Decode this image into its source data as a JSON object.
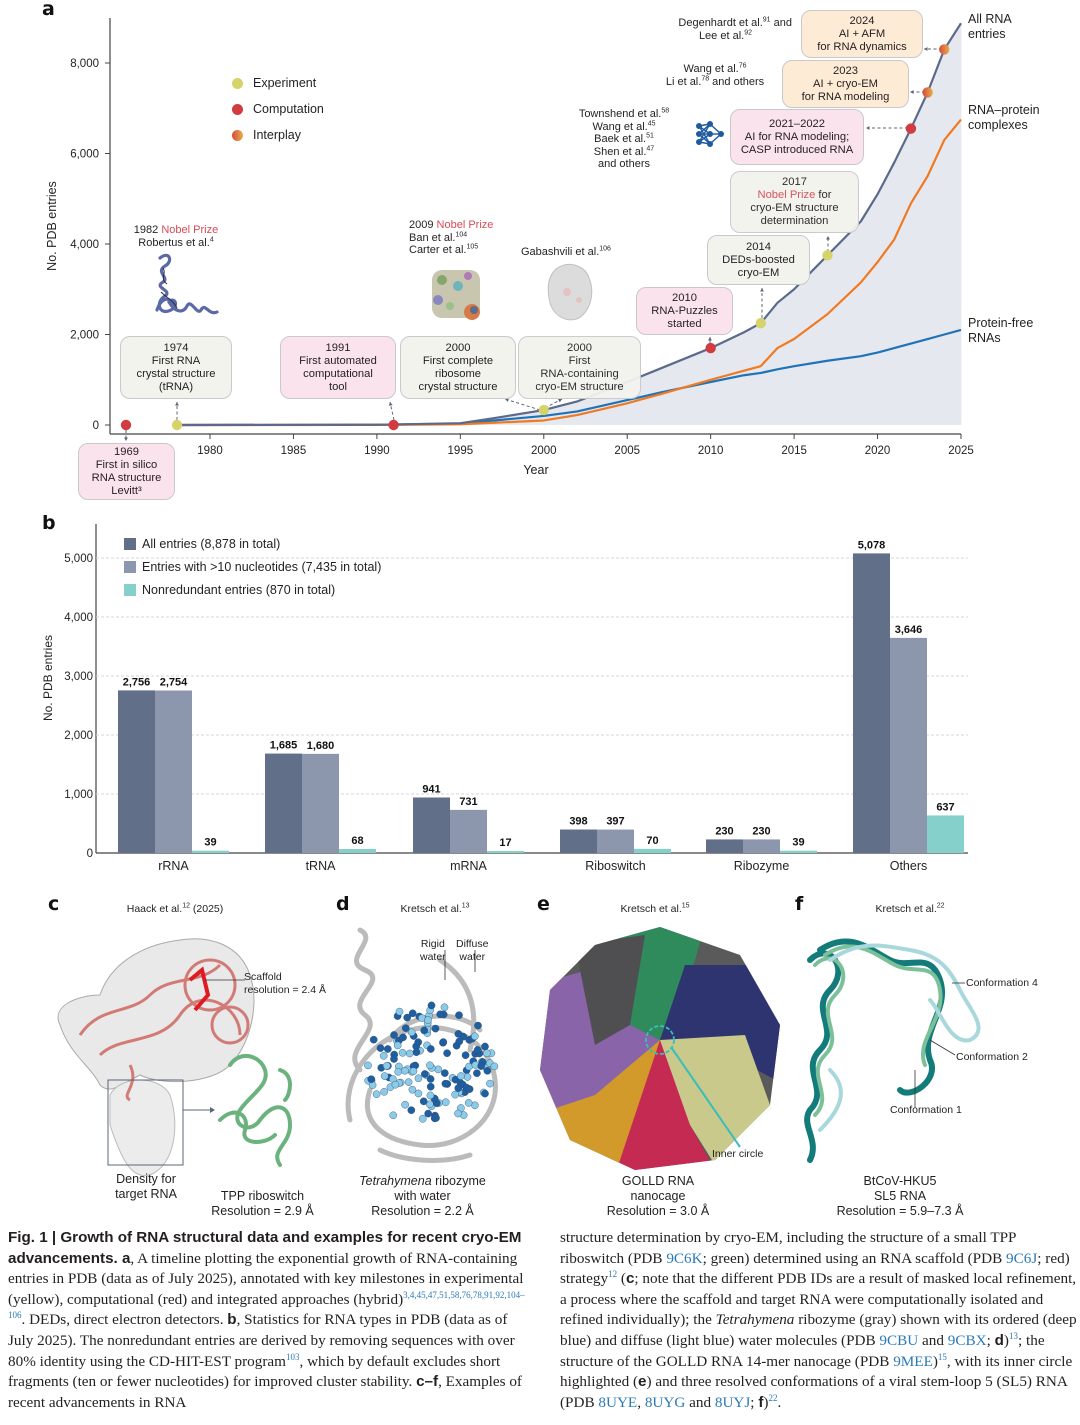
{
  "panels": {
    "a": {
      "letter": "a"
    },
    "b": {
      "letter": "b"
    },
    "c": {
      "letter": "c",
      "citation": "Haack et al.",
      "citation_ref": "12",
      "citation_suffix": " (2025)",
      "scaffold_label_1": "Scaffold",
      "scaffold_label_2": "resolution = 2.4 Å",
      "density_label_1": "Density for",
      "density_label_2": "target RNA",
      "caption_1": "TPP riboswitch",
      "caption_2": "Resolution = 2.9 Å"
    },
    "d": {
      "letter": "d",
      "citation": "Kretsch et al.",
      "citation_ref": "13",
      "rigid_1": "Rigid",
      "rigid_2": "water",
      "diffuse_1": "Diffuse",
      "diffuse_2": "water",
      "caption_italic": "Tetrahymena",
      "caption_1_rest": " ribozyme",
      "caption_2": "with water",
      "caption_3": "Resolution = 2.2 Å"
    },
    "e": {
      "letter": "e",
      "citation": "Kretsch et al.",
      "citation_ref": "15",
      "inner_circle": "Inner circle",
      "caption_1": "GOLLD RNA",
      "caption_2": "nanocage",
      "caption_3": "Resolution = 3.0 Å"
    },
    "f": {
      "letter": "f",
      "citation": "Kretsch et al.",
      "citation_ref": "22",
      "conf4": "Conformation 4",
      "conf2": "Conformation 2",
      "conf1": "Conformation 1",
      "caption_1": "BtCoV-HKU5",
      "caption_2": "SL5 RNA",
      "caption_3": "Resolution = 5.9–7.3 Å"
    }
  },
  "chart_data": [
    {
      "type": "area",
      "title": "",
      "xlabel": "Year",
      "ylabel": "No. PDB entries",
      "xlim": [
        1969,
        2025
      ],
      "ylim": [
        0,
        8878
      ],
      "x_ticks": [
        1980,
        1985,
        1990,
        1995,
        2000,
        2005,
        2010,
        2015,
        2020,
        2025
      ],
      "y_ticks": [
        0,
        2000,
        4000,
        6000,
        8000
      ],
      "y_tick_labels": [
        "0",
        "2,000",
        "4,000",
        "6,000",
        "8,000"
      ],
      "grid": false,
      "series": [
        {
          "name": "All RNA entries",
          "label_lines": [
            "All RNA",
            "entries"
          ],
          "color": "#5b6a8a",
          "fill": "#e6e8ef",
          "x": [
            1978,
            1990,
            1995,
            1997,
            2000,
            2002,
            2005,
            2007,
            2010,
            2012,
            2013,
            2014,
            2015,
            2017,
            2019,
            2020,
            2021,
            2022,
            2023,
            2024,
            2025
          ],
          "y": [
            0,
            5,
            40,
            150,
            330,
            520,
            950,
            1250,
            1700,
            2050,
            2250,
            2700,
            3000,
            3750,
            4500,
            5100,
            5800,
            6550,
            7350,
            8300,
            8878
          ]
        },
        {
          "name": "RNA–protein complexes",
          "label_lines": [
            "RNA–protein",
            "complexes"
          ],
          "color": "#f07a22",
          "x": [
            1978,
            1990,
            1995,
            1997,
            2000,
            2002,
            2005,
            2007,
            2010,
            2012,
            2013,
            2014,
            2015,
            2017,
            2019,
            2020,
            2021,
            2022,
            2023,
            2024,
            2025
          ],
          "y": [
            0,
            2,
            15,
            50,
            100,
            220,
            480,
            680,
            1000,
            1200,
            1300,
            1700,
            1900,
            2450,
            3150,
            3600,
            4100,
            4900,
            5500,
            6300,
            6750
          ]
        },
        {
          "name": "Protein-free RNAs",
          "label_lines": [
            "Protein-free",
            "RNAs"
          ],
          "color": "#1f73b7",
          "x": [
            1978,
            1990,
            1995,
            1997,
            2000,
            2002,
            2005,
            2007,
            2010,
            2012,
            2013,
            2014,
            2015,
            2017,
            2019,
            2020,
            2021,
            2022,
            2023,
            2024,
            2025
          ],
          "y": [
            0,
            5,
            30,
            100,
            200,
            300,
            550,
            720,
            950,
            1100,
            1150,
            1230,
            1300,
            1420,
            1520,
            1600,
            1700,
            1800,
            1900,
            2000,
            2100
          ]
        }
      ],
      "legend": {
        "placement": "top-left",
        "items": [
          {
            "label": "Experiment",
            "color": "#d5d36a"
          },
          {
            "label": "Computation",
            "color": "#d03c40"
          },
          {
            "label": "Interplay",
            "color_from": "#d7483f",
            "color_to": "#e6b04a"
          }
        ]
      },
      "milestones": [
        {
          "year": 1969,
          "value": 0,
          "kind": "Computation",
          "lines": [
            "1969",
            "First in silico",
            "RNA structure",
            "Levitt³"
          ]
        },
        {
          "year": 1974,
          "value": 0,
          "kind": "Experiment",
          "lines": [
            "1974",
            "First RNA",
            "crystal structure",
            "(tRNA)"
          ]
        },
        {
          "year": 1991,
          "value": 0,
          "kind": "Computation",
          "lines": [
            "1991",
            "First automated",
            "computational",
            "tool"
          ]
        },
        {
          "year": 2000,
          "value": 330,
          "kind": "Experiment",
          "lines": [
            "2000",
            "First complete",
            "ribosome",
            "crystal structure"
          ]
        },
        {
          "year": 2000,
          "value": 330,
          "kind": "Experiment",
          "lines": [
            "2000",
            "First",
            "RNA-containing",
            "cryo-EM structure"
          ]
        },
        {
          "year": 2010,
          "value": 1700,
          "kind": "Computation",
          "lines": [
            "2010",
            "RNA-Puzzles",
            "started"
          ]
        },
        {
          "year": 2013,
          "value": 2250,
          "kind": "Experiment",
          "lines": [
            "2014",
            "DEDs-boosted",
            "cryo-EM"
          ]
        },
        {
          "year": 2017,
          "value": 3750,
          "kind": "Experiment",
          "lines": [
            "2017",
            "Nobel Prize for",
            "cryo-EM structure",
            "determination"
          ]
        },
        {
          "year": 2022,
          "value": 6550,
          "kind": "Computation",
          "lines": [
            "2021–2022",
            "AI for RNA modeling;",
            "CASP introduced RNA"
          ]
        },
        {
          "year": 2023,
          "value": 7350,
          "kind": "Interplay",
          "lines": [
            "2023",
            "AI + cryo-EM",
            "for RNA modeling"
          ]
        },
        {
          "year": 2024,
          "value": 8300,
          "kind": "Interplay",
          "lines": [
            "2024",
            "AI + AFM",
            "for RNA dynamics"
          ]
        }
      ],
      "annotations": {
        "nobel_1982": {
          "year_text": "1982 ",
          "nobel_text": "Nobel Prize",
          "author": "Robertus et al.",
          "ref": "4"
        },
        "nobel_2009": {
          "year_text": "2009 ",
          "nobel_text": "Nobel Prize",
          "authors": [
            {
              "name": "Ban et al.",
              "ref": "104"
            },
            {
              "name": "Carter et al.",
              "ref": "105"
            }
          ]
        },
        "gabashvili": {
          "name": "Gabashvili et al.",
          "ref": "106"
        },
        "townshend": [
          {
            "name": "Townshend et al.",
            "ref": "58"
          },
          {
            "name": "Wang et al.",
            "ref": "45"
          },
          {
            "name": "Baek et al.",
            "ref": "51"
          },
          {
            "name": "Shen et al.",
            "ref": "47"
          },
          {
            "name": "and others",
            "ref": ""
          }
        ],
        "wang_li": [
          {
            "name": "Wang et al.",
            "ref": "76"
          },
          {
            "name": "Li et al.",
            "ref": "78",
            "suffix": " and others"
          }
        ],
        "degenhardt": [
          {
            "name": "Degenhardt et al.",
            "ref": "91",
            "suffix": " and"
          },
          {
            "name": "Lee et al.",
            "ref": "92"
          }
        ],
        "nobel_2017_prefix": "2017",
        "nobel_2017_red": "Nobel Prize",
        "nobel_2017_suffix": " for"
      }
    },
    {
      "type": "bar",
      "title": "",
      "xlabel": "",
      "ylabel": "No. PDB entries",
      "ylim": [
        0,
        5500
      ],
      "y_ticks": [
        0,
        1000,
        2000,
        3000,
        4000,
        5000
      ],
      "y_tick_labels": [
        "0",
        "1,000",
        "2,000",
        "3,000",
        "4,000",
        "5,000"
      ],
      "grid": true,
      "categories": [
        "rRNA",
        "tRNA",
        "mRNA",
        "Riboswitch",
        "Ribozyme",
        "Others"
      ],
      "series": [
        {
          "name": "All entries (8,878 in total)",
          "color": "#616f89",
          "values": [
            2756,
            1685,
            941,
            398,
            230,
            5078
          ],
          "labels": [
            "2,756",
            "1,685",
            "941",
            "398",
            "230",
            "5,078"
          ]
        },
        {
          "name": "Entries with >10 nucleotides (7,435 in total)",
          "color": "#8c96ad",
          "values": [
            2754,
            1680,
            731,
            397,
            230,
            3646
          ],
          "labels": [
            "2,754",
            "1,680",
            "731",
            "397",
            "230",
            "3,646"
          ]
        },
        {
          "name": "Nonredundant entries (870 in total)",
          "color": "#86d0cc",
          "values": [
            39,
            68,
            17,
            70,
            39,
            637
          ],
          "labels": [
            "39",
            "68",
            "17",
            "70",
            "39",
            "637"
          ]
        }
      ],
      "legend": {
        "placement": "top-left"
      }
    }
  ],
  "caption": {
    "fig_label": "Fig. 1 | ",
    "title": "Growth of RNA structural data and examples for recent cryo-EM advancements.",
    "col1": [
      {
        "t": "b",
        "v": " a"
      },
      {
        "t": "n",
        "v": ", A timeline plotting the exponential growth of RNA-containing entries in PDB (data as of July 2025), annotated with key milestones in experimental (yellow), computational (red) and integrated approaches (hybrid)"
      },
      {
        "t": "ref",
        "v": "3,4,45,47,51,58,76,78,91,92,104–106"
      },
      {
        "t": "n",
        "v": ". DEDs, direct electron detectors. "
      },
      {
        "t": "b",
        "v": "b"
      },
      {
        "t": "n",
        "v": ", Statistics for RNA types in PDB (data as of July 2025). The nonredundant entries are derived by removing sequences with over 80% identity using the CD-HIT-EST program"
      },
      {
        "t": "ref",
        "v": "103"
      },
      {
        "t": "n",
        "v": ", which by default excludes short fragments (ten or fewer nucleotides) for improved cluster stability. "
      },
      {
        "t": "b",
        "v": "c–f"
      },
      {
        "t": "n",
        "v": ", Examples of recent advancements in RNA"
      }
    ],
    "col2": [
      {
        "t": "n",
        "v": "structure determination by cryo-EM, including the structure of a small TPP riboswitch (PDB "
      },
      {
        "t": "link",
        "v": "9C6K"
      },
      {
        "t": "n",
        "v": "; green) determined using an RNA scaffold (PDB "
      },
      {
        "t": "link",
        "v": "9C6J"
      },
      {
        "t": "n",
        "v": "; red) strategy"
      },
      {
        "t": "ref",
        "v": "12"
      },
      {
        "t": "n",
        "v": " ("
      },
      {
        "t": "b",
        "v": "c"
      },
      {
        "t": "n",
        "v": "; note that the different PDB IDs are a result of masked local refinement, a process where the scaffold and target RNA were computationally isolated and refined individually); the "
      },
      {
        "t": "i",
        "v": "Tetrahymena"
      },
      {
        "t": "n",
        "v": " ribozyme (gray) shown with its ordered (deep blue) and diffuse (light blue) water molecules (PDB "
      },
      {
        "t": "link",
        "v": "9CBU"
      },
      {
        "t": "n",
        "v": " and "
      },
      {
        "t": "link",
        "v": "9CBX"
      },
      {
        "t": "n",
        "v": "; "
      },
      {
        "t": "b",
        "v": "d"
      },
      {
        "t": "n",
        "v": ")"
      },
      {
        "t": "ref",
        "v": "13"
      },
      {
        "t": "n",
        "v": "; the structure of the GOLLD RNA 14-mer nanocage (PDB "
      },
      {
        "t": "link",
        "v": "9MEE"
      },
      {
        "t": "n",
        "v": ")"
      },
      {
        "t": "ref",
        "v": "15"
      },
      {
        "t": "n",
        "v": ", with its inner circle highlighted ("
      },
      {
        "t": "b",
        "v": "e"
      },
      {
        "t": "n",
        "v": ") and three resolved conformations of a viral stem-loop 5 (SL5) RNA (PDB "
      },
      {
        "t": "link",
        "v": "8UYE"
      },
      {
        "t": "n",
        "v": ", "
      },
      {
        "t": "link",
        "v": "8UYG"
      },
      {
        "t": "n",
        "v": " and "
      },
      {
        "t": "link",
        "v": "8UYJ"
      },
      {
        "t": "n",
        "v": "; "
      },
      {
        "t": "b",
        "v": "f"
      },
      {
        "t": "n",
        "v": ")"
      },
      {
        "t": "ref",
        "v": "22"
      },
      {
        "t": "n",
        "v": "."
      }
    ]
  }
}
